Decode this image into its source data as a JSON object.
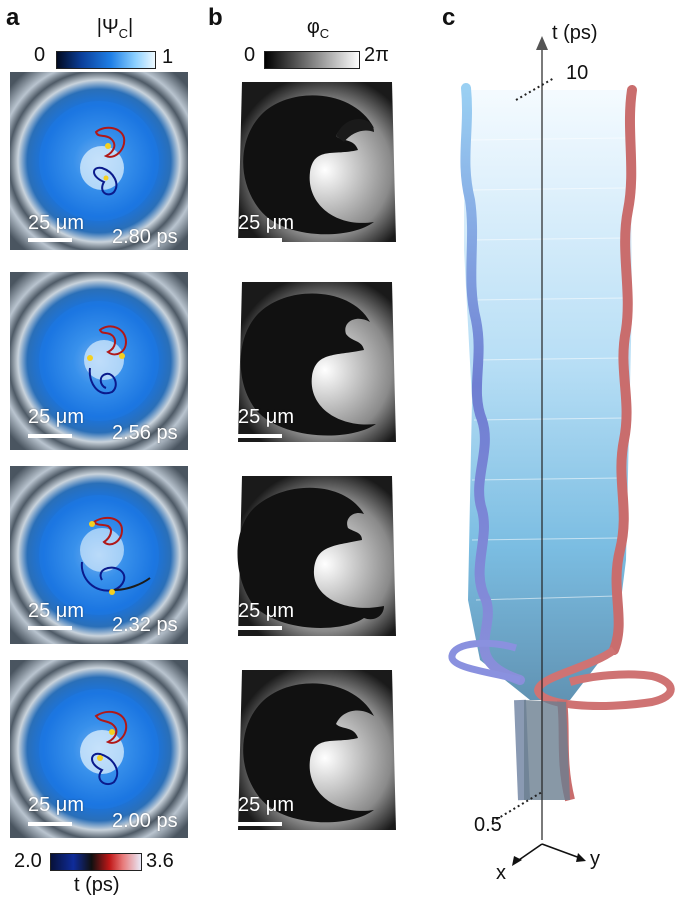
{
  "panels": {
    "a": {
      "label": "a",
      "colorbar_title": "|Ψ",
      "colorbar_title_sub": "C",
      "colorbar_title_end": "|",
      "colorbar_min": "0",
      "colorbar_max": "1",
      "frames": [
        {
          "time": "2.80 ps",
          "scale": "25 μm"
        },
        {
          "time": "2.56 ps",
          "scale": "25 μm"
        },
        {
          "time": "2.32 ps",
          "scale": "25 μm"
        },
        {
          "time": "2.00 ps",
          "scale": "25 μm"
        }
      ],
      "time_colorbar": {
        "min": "2.0",
        "max": "3.6",
        "label": "t (ps)"
      }
    },
    "b": {
      "label": "b",
      "colorbar_title": "φ",
      "colorbar_title_sub": "C",
      "colorbar_min": "0",
      "colorbar_max": "2π",
      "frames": [
        {
          "scale": "25 μm"
        },
        {
          "scale": "25 μm"
        },
        {
          "scale": "25 μm"
        },
        {
          "scale": "25 μm"
        }
      ]
    },
    "c": {
      "label": "c",
      "axis_t_label": "t (ps)",
      "tick_top": "10",
      "tick_bottom": "0.5",
      "axis_x": "x",
      "axis_y": "y"
    }
  },
  "colors": {
    "amp_low": "#05122e",
    "amp_mid": "#1f7fe6",
    "amp_high": "#e8f6ff",
    "phase_low": "#000000",
    "phase_high": "#ffffff",
    "vortex_red": "#b01818",
    "vortex_blue": "#0a1a8c",
    "vortex_dot": "#f5d020",
    "tube_red": "#c96d6d",
    "tube_blue": "#7f86d8"
  }
}
